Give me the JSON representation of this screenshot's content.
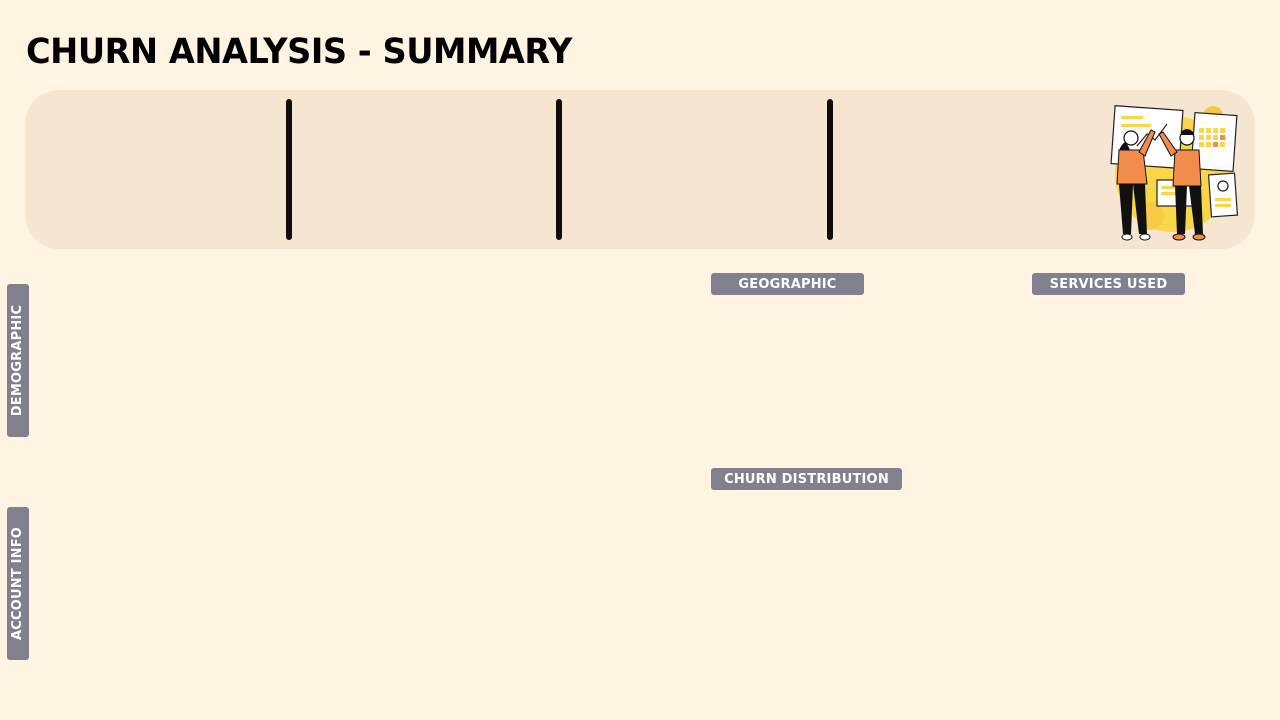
{
  "header": {
    "title": "CHURN ANALYSIS - SUMMARY"
  },
  "kpi_banner": {
    "illustration": "team-high-five-dashboard-illustration"
  },
  "sections": {
    "geographic": "GEOGRAPHIC",
    "services_used": "SERVICES USED",
    "churn_distribution": "CHURN DISTRIBUTION",
    "demographic": "DEMOGRAPHIC",
    "account_info": "ACCOUNT INFO"
  },
  "colors": {
    "background": "#fff4e2",
    "banner": "#f5e5d1",
    "label_bg": "#80808f",
    "accent_orange": "#f28c4a",
    "accent_yellow": "#f9d648"
  }
}
